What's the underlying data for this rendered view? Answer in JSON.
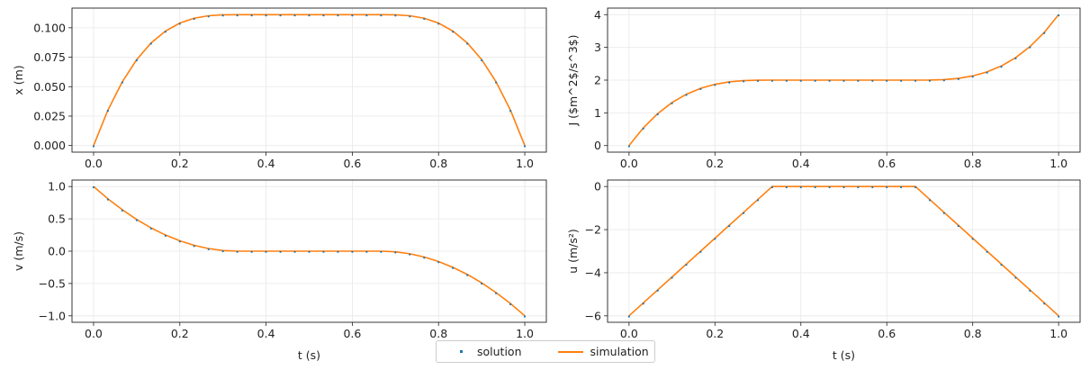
{
  "legend": {
    "solution": "solution",
    "simulation": "simulation",
    "position": "bottom-center"
  },
  "colors": {
    "solution": "#1f77b4",
    "simulation": "#ff7f0e",
    "grid": "#e8e8e8"
  },
  "chart_data": [
    {
      "type": "line",
      "ylabel": "x ($m$)",
      "xlabel": "",
      "xlim": [
        -0.05,
        1.05
      ],
      "ylim": [
        -0.0056,
        0.1167
      ],
      "grid": true,
      "xticks": [
        "0.0",
        "0.2",
        "0.4",
        "0.6",
        "0.8",
        "1.0"
      ],
      "yticks": [
        "0.000",
        "0.025",
        "0.050",
        "0.075",
        "0.100"
      ],
      "ytick_values": [
        0,
        0.025,
        0.05,
        0.075,
        0.1
      ],
      "series": [
        {
          "name": "solution",
          "style": "dots"
        },
        {
          "name": "simulation",
          "style": "line"
        }
      ],
      "values": [
        0,
        0.0301,
        0.0542,
        0.073,
        0.0871,
        0.0972,
        0.104,
        0.1081,
        0.1102,
        0.111,
        0.1111,
        0.1111,
        0.1111,
        0.1111,
        0.1111,
        0.1111,
        0.1111,
        0.1111,
        0.1111,
        0.1111,
        0.1111,
        0.111,
        0.1102,
        0.1081,
        0.104,
        0.0972,
        0.0871,
        0.073,
        0.0542,
        0.0301,
        0
      ]
    },
    {
      "type": "line",
      "ylabel": "J ($m^2$/s^3$)",
      "xlabel": "",
      "xlim": [
        -0.05,
        1.05
      ],
      "ylim": [
        -0.2,
        4.2
      ],
      "grid": true,
      "xticks": [
        "0.0",
        "0.2",
        "0.4",
        "0.6",
        "0.8",
        "1.0"
      ],
      "yticks": [
        "0",
        "1",
        "2",
        "3",
        "4"
      ],
      "ytick_values": [
        0,
        1,
        2,
        3,
        4
      ],
      "series": [
        {
          "name": "solution",
          "style": "dots"
        },
        {
          "name": "simulation",
          "style": "line"
        }
      ],
      "values": [
        0,
        0.542,
        0.976,
        1.314,
        1.568,
        1.75,
        1.872,
        1.946,
        1.984,
        1.998,
        2,
        2,
        2,
        2,
        2,
        2,
        2,
        2,
        2,
        2,
        2,
        2.002,
        2.016,
        2.054,
        2.128,
        2.25,
        2.432,
        2.686,
        3.024,
        3.458,
        4
      ]
    },
    {
      "type": "line",
      "ylabel": "v ($m/s$)",
      "xlabel": "t (s)",
      "xlim": [
        -0.05,
        1.05
      ],
      "ylim": [
        -1.1,
        1.1
      ],
      "grid": true,
      "xticks": [
        "0.0",
        "0.2",
        "0.4",
        "0.6",
        "0.8",
        "1.0"
      ],
      "yticks": [
        "−1.0",
        "−0.5",
        "0.0",
        "0.5",
        "1.0"
      ],
      "ytick_values": [
        -1,
        -0.5,
        0,
        0.5,
        1
      ],
      "series": [
        {
          "name": "solution",
          "style": "dots"
        },
        {
          "name": "simulation",
          "style": "line"
        }
      ],
      "values": [
        1,
        0.81,
        0.64,
        0.49,
        0.36,
        0.25,
        0.16,
        0.09,
        0.04,
        0.01,
        0,
        0,
        0,
        0,
        0,
        0,
        0,
        0,
        0,
        0,
        0,
        -0.01,
        -0.04,
        -0.09,
        -0.16,
        -0.25,
        -0.36,
        -0.49,
        -0.64,
        -0.81,
        -1
      ]
    },
    {
      "type": "line",
      "ylabel": "u ($m/s^2$)",
      "xlabel": "t (s)",
      "xlim": [
        -0.05,
        1.05
      ],
      "ylim": [
        -6.3,
        0.3
      ],
      "grid": true,
      "xticks": [
        "0.0",
        "0.2",
        "0.4",
        "0.6",
        "0.8",
        "1.0"
      ],
      "yticks": [
        "−6",
        "−4",
        "−2",
        "0"
      ],
      "ytick_values": [
        -6,
        -4,
        -2,
        0
      ],
      "series": [
        {
          "name": "solution",
          "style": "dots"
        },
        {
          "name": "simulation",
          "style": "line"
        }
      ],
      "values": [
        -6,
        -5.4,
        -4.8,
        -4.2,
        -3.6,
        -3,
        -2.4,
        -1.8,
        -1.2,
        -0.6,
        0,
        0,
        0,
        0,
        0,
        0,
        0,
        0,
        0,
        0,
        0,
        -0.6,
        -1.2,
        -1.8,
        -2.4,
        -3,
        -3.6,
        -4.2,
        -4.8,
        -5.4,
        -6
      ]
    }
  ],
  "t": [
    0,
    0.0333,
    0.0667,
    0.1,
    0.1333,
    0.1667,
    0.2,
    0.2333,
    0.2667,
    0.3,
    0.3333,
    0.3667,
    0.4,
    0.4333,
    0.4667,
    0.5,
    0.5333,
    0.5667,
    0.6,
    0.6333,
    0.6667,
    0.7,
    0.7333,
    0.7667,
    0.8,
    0.8333,
    0.8667,
    0.9,
    0.9333,
    0.9667,
    1
  ],
  "ylabel_display": [
    "x (m)",
    "J ($m^2$/s^3$)",
    "v (m/s)",
    "u (m/s²)"
  ]
}
